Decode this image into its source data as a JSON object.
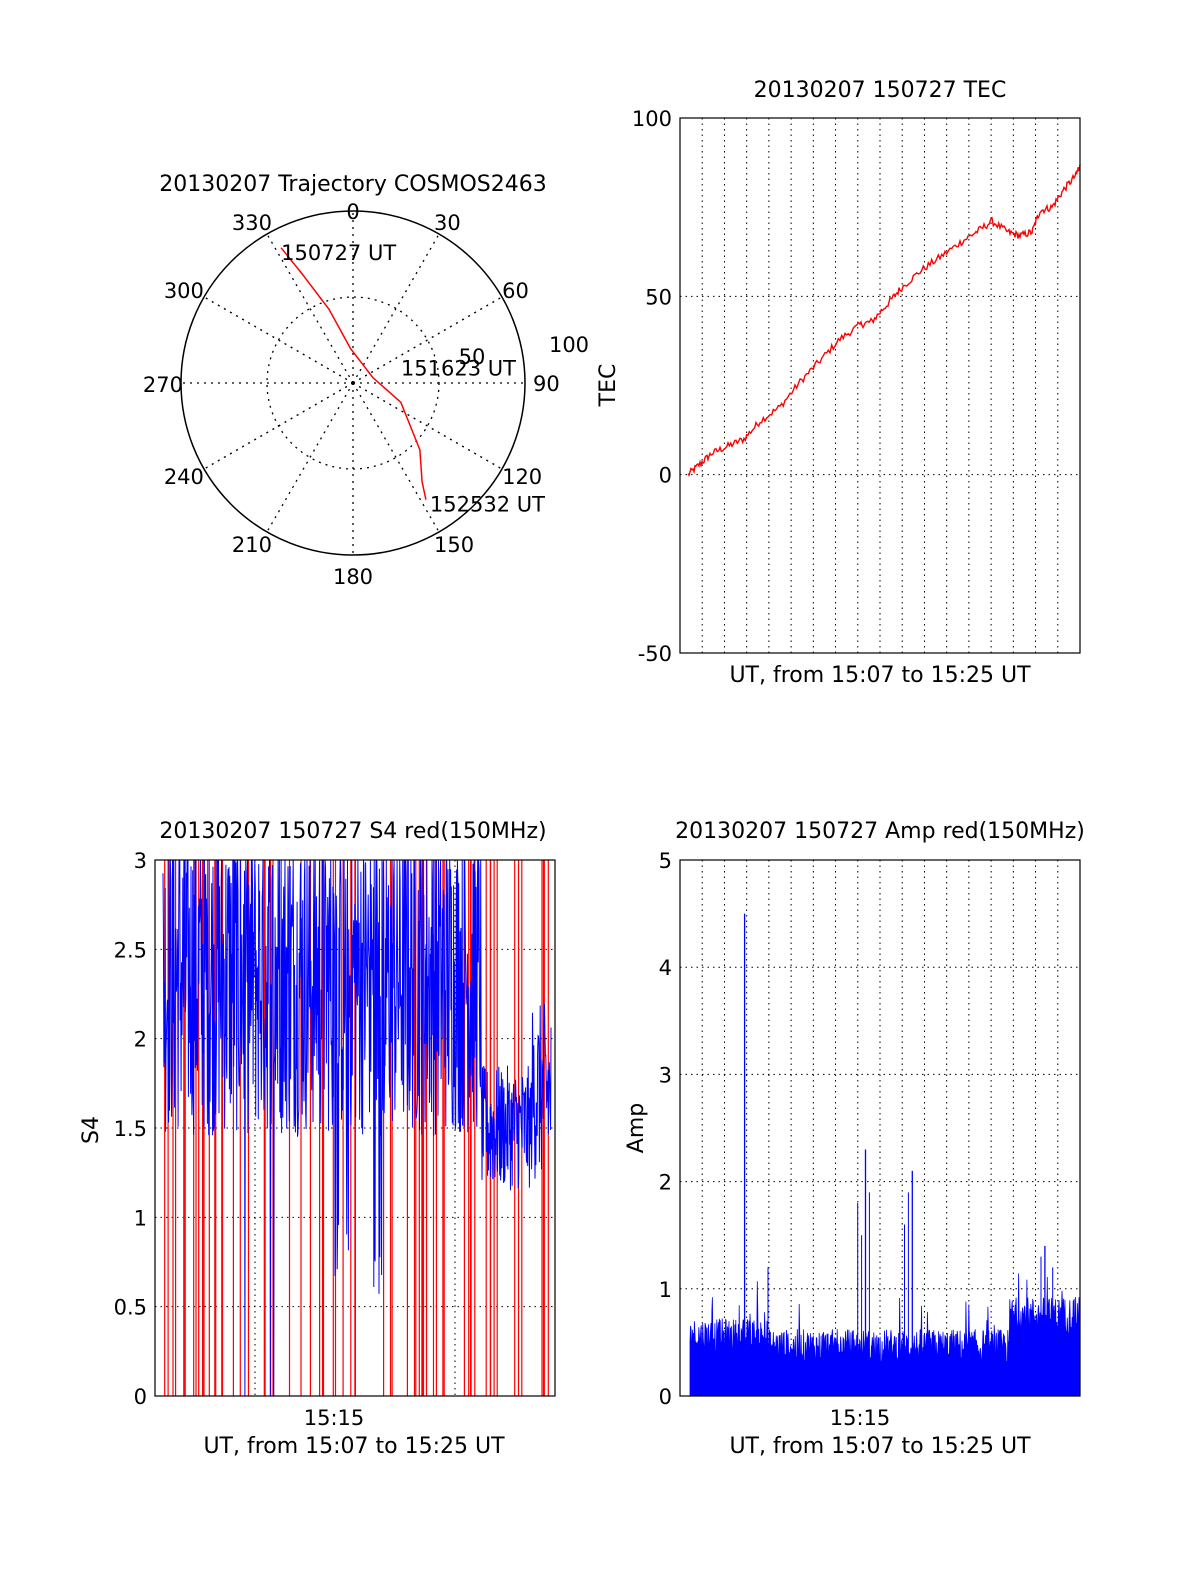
{
  "chart_data": [
    {
      "id": "trajectory",
      "type": "polar",
      "title": "20130207 Trajectory COSMOS2463",
      "azimuth_labels": [
        "0",
        "30",
        "60",
        "90",
        "120",
        "150",
        "180",
        "210",
        "240",
        "270",
        "300",
        "330"
      ],
      "radial_labels": [
        "50",
        "100"
      ],
      "radial_range": [
        0,
        100
      ],
      "grid": true,
      "line_color": "#ff0000",
      "trajectory": [
        {
          "az": 332,
          "r": 89
        },
        {
          "az": 335,
          "r": 70
        },
        {
          "az": 342,
          "r": 45
        },
        {
          "az": 356,
          "r": 20
        },
        {
          "az": 75,
          "r": 12
        },
        {
          "az": 112,
          "r": 30
        },
        {
          "az": 135,
          "r": 55
        },
        {
          "az": 145,
          "r": 70
        },
        {
          "az": 148,
          "r": 80
        }
      ],
      "annotations": [
        {
          "text": "150727 UT",
          "az": 332,
          "r": 89
        },
        {
          "text": "151623 UT",
          "az": 75,
          "r": 12
        },
        {
          "text": "152532 UT",
          "az": 148,
          "r": 80
        }
      ]
    },
    {
      "id": "tec",
      "type": "line",
      "title": "20130207 150727 TEC",
      "xlabel": "UT, from 15:07 to 15:25 UT",
      "ylabel": "TEC",
      "xlim": [
        0,
        1
      ],
      "ylim": [
        -50,
        100
      ],
      "yticks": [
        "-50",
        "0",
        "50",
        "100"
      ],
      "grid": true,
      "line_color": "#ff0000",
      "x": [
        0.02,
        0.05,
        0.08,
        0.12,
        0.16,
        0.2,
        0.25,
        0.3,
        0.35,
        0.4,
        0.45,
        0.48,
        0.52,
        0.55,
        0.6,
        0.65,
        0.7,
        0.74,
        0.78,
        0.82,
        0.85,
        0.88,
        0.9,
        0.93,
        0.96,
        0.99,
        1.0
      ],
      "values": [
        0,
        3,
        6,
        8,
        10,
        15,
        19,
        26,
        32,
        38,
        42,
        43,
        48,
        52,
        57,
        61,
        65,
        68,
        71,
        68,
        67,
        68,
        74,
        75,
        80,
        84,
        87
      ]
    },
    {
      "id": "s4",
      "type": "line",
      "title": "20130207 150727 S4 red(150MHz)",
      "xlabel": "UT, from 15:07 to 15:25 UT",
      "ylabel": "S4",
      "xticks": [
        "15:15"
      ],
      "ylim": [
        0,
        3
      ],
      "yticks": [
        "0",
        "0.5",
        "1",
        "1.5",
        "2",
        "2.5",
        "3"
      ],
      "grid": true,
      "series_colors": [
        "#ff0000",
        "#0000ff"
      ]
    },
    {
      "id": "amp",
      "type": "line",
      "title": "20130207 150727 Amp red(150MHz)",
      "xlabel": "UT, from 15:07 to 15:25 UT",
      "ylabel": "Amp",
      "xticks": [
        "15:15"
      ],
      "ylim": [
        0,
        5
      ],
      "yticks": [
        "0",
        "1",
        "2",
        "3",
        "4",
        "5"
      ],
      "grid": true,
      "line_color": "#0000ff",
      "peaks": [
        {
          "x": 0.14,
          "value": 4.5
        },
        {
          "x": 0.45,
          "value": 2.3
        },
        {
          "x": 0.57,
          "value": 2.1
        },
        {
          "x": 0.91,
          "value": 1.4
        }
      ]
    }
  ]
}
